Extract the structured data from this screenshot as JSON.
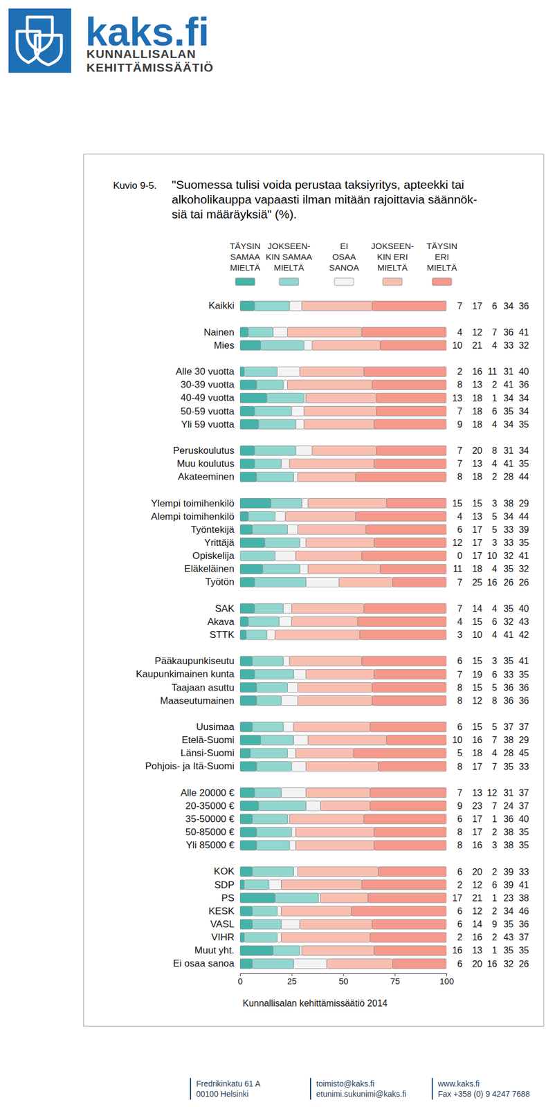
{
  "header": {
    "logo_text": "kaks.fi",
    "org_lines": [
      "KUNNALLISALAN",
      "KEHITTÄMISSÄÄTIÖ"
    ]
  },
  "footer": {
    "columns": [
      [
        "Fredrikinkatu 61 A",
        "00100 Helsinki"
      ],
      [
        "toimisto@kaks.fi",
        "etunimi.sukunimi@kaks.fi"
      ],
      [
        "www.kaks.fi",
        "Fax +358 (0) 9 4247 7688"
      ]
    ]
  },
  "chart_data": {
    "type": "bar",
    "orientation": "horizontal",
    "stacked": true,
    "data_labels": true,
    "grid": false,
    "figure_label": "Kuvio 9-5.",
    "title": "\"Suomessa tulisi voida perustaa taksiyritys, apteekki tai\nalkoholikauppa vapaasti ilman mitään rajoittavia säännök-\nsiä tai määräyksiä\" (%).",
    "source": "Kunnallisalan kehittämissäätiö 2014",
    "xlim": [
      0,
      100
    ],
    "xticks": [
      0,
      25,
      50,
      75,
      100
    ],
    "categories": [
      "Kaikki",
      null,
      "Nainen",
      "Mies",
      null,
      "Alle 30 vuotta",
      "30-39 vuotta",
      "40-49 vuotta",
      "50-59 vuotta",
      "Yli 59 vuotta",
      null,
      "Peruskoulutus",
      "Muu koulutus",
      "Akateeminen",
      null,
      "Ylempi toimihenkilö",
      "Alempi toimihenkilö",
      "Työntekijä",
      "Yrittäjä",
      "Opiskelija",
      "Eläkeläinen",
      "Työtön",
      null,
      "SAK",
      "Akava",
      "STTK",
      null,
      "Pääkaupunkiseutu",
      "Kaupunkimainen kunta",
      "Taajaan asuttu",
      "Maaseutumainen",
      null,
      "Uusimaa",
      "Etelä-Suomi",
      "Länsi-Suomi",
      "Pohjois- ja Itä-Suomi",
      null,
      "Alle 20000 €",
      "20-35000 €",
      "35-50000 €",
      "50-85000 €",
      "Yli 85000 €",
      null,
      "KOK",
      "SDP",
      "PS",
      "KESK",
      "VASL",
      "VIHR",
      "Muut yht.",
      "Ei osaa sanoa"
    ],
    "series": [
      {
        "name": "TÄYSIN\nSAMAA\nMIELTÄ",
        "color": "#45b3a9",
        "values": [
          7,
          null,
          4,
          10,
          null,
          2,
          8,
          13,
          7,
          9,
          null,
          7,
          7,
          8,
          null,
          15,
          4,
          6,
          12,
          0,
          11,
          7,
          null,
          7,
          4,
          3,
          null,
          6,
          7,
          8,
          8,
          null,
          6,
          10,
          5,
          8,
          null,
          7,
          9,
          6,
          8,
          8,
          null,
          6,
          2,
          17,
          6,
          6,
          2,
          16,
          6
        ]
      },
      {
        "name": "JOKSEEN-\nKIN SAMAA\nMIELTÄ",
        "color": "#92d6d0",
        "values": [
          17,
          null,
          12,
          21,
          null,
          16,
          13,
          18,
          18,
          18,
          null,
          20,
          13,
          18,
          null,
          15,
          13,
          17,
          17,
          17,
          18,
          25,
          null,
          14,
          15,
          10,
          null,
          15,
          19,
          15,
          12,
          null,
          15,
          16,
          18,
          17,
          null,
          13,
          23,
          17,
          17,
          16,
          null,
          20,
          12,
          21,
          12,
          14,
          16,
          13,
          20
        ]
      },
      {
        "name": "EI\nOSAA\nSANOA",
        "color": "#f3f3f3",
        "values": [
          6,
          null,
          7,
          4,
          null,
          11,
          2,
          1,
          6,
          4,
          null,
          8,
          4,
          2,
          null,
          3,
          5,
          5,
          3,
          10,
          4,
          16,
          null,
          4,
          6,
          4,
          null,
          3,
          6,
          5,
          8,
          null,
          5,
          7,
          4,
          7,
          null,
          12,
          7,
          1,
          2,
          3,
          null,
          2,
          6,
          1,
          2,
          9,
          2,
          1,
          16
        ]
      },
      {
        "name": "JOKSEEN-\nKIN ERI\nMIELTÄ",
        "color": "#f8bfb1",
        "values": [
          34,
          null,
          36,
          33,
          null,
          31,
          41,
          34,
          35,
          34,
          null,
          31,
          41,
          28,
          null,
          38,
          34,
          33,
          33,
          32,
          35,
          26,
          null,
          35,
          32,
          41,
          null,
          35,
          33,
          36,
          36,
          null,
          37,
          38,
          28,
          35,
          null,
          31,
          24,
          36,
          38,
          38,
          null,
          39,
          39,
          23,
          34,
          35,
          43,
          35,
          32
        ]
      },
      {
        "name": "TÄYSIN\nERI\nMIELTÄ",
        "color": "#f5998c",
        "values": [
          36,
          null,
          41,
          32,
          null,
          40,
          36,
          34,
          34,
          35,
          null,
          34,
          35,
          44,
          null,
          29,
          44,
          39,
          35,
          41,
          32,
          26,
          null,
          40,
          43,
          42,
          null,
          41,
          35,
          36,
          36,
          null,
          37,
          29,
          45,
          33,
          null,
          37,
          37,
          40,
          35,
          35,
          null,
          33,
          41,
          38,
          46,
          36,
          37,
          35,
          26
        ]
      }
    ]
  }
}
